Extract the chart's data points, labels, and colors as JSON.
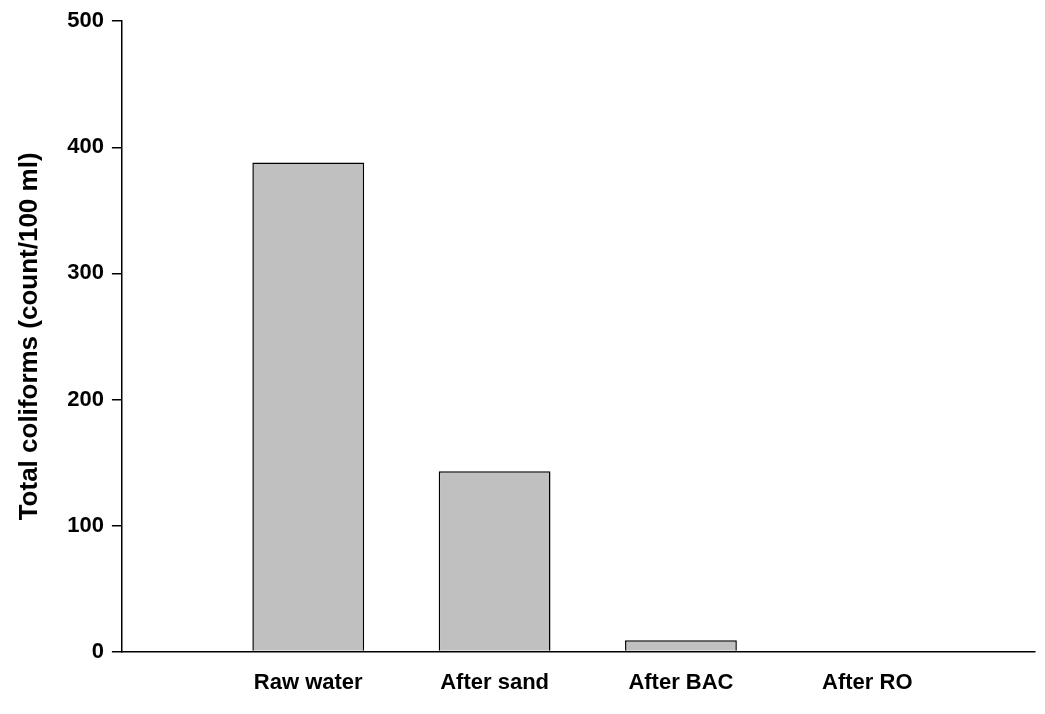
{
  "chart_data": {
    "type": "bar",
    "ylabel": "Total coliforms (count/100 ml)",
    "categories": [
      "Raw water",
      "After sand",
      "After BAC",
      "After RO"
    ],
    "values": [
      388,
      143,
      9,
      0
    ],
    "color": "#c0c0c0",
    "ylim": [
      0,
      500
    ],
    "yticks": [
      0,
      100,
      200,
      300,
      400,
      500
    ],
    "grid": false,
    "legend": false
  }
}
